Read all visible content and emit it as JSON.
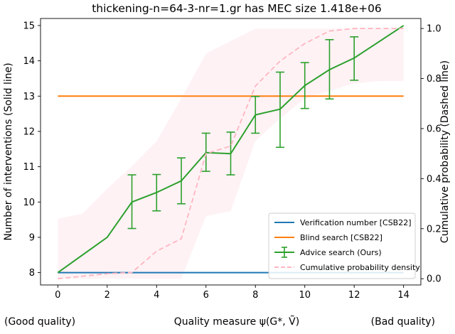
{
  "chart_data": {
    "type": "line",
    "title": "thickening-n=64-3-nr=1.gr has MEC size 1.418e+06",
    "xlabel": "Quality measure ψ(G*, Ṽ)",
    "ylabel": "Number of interventions (Solid line)",
    "y2label": "Cumulative probability (Dashed line)",
    "x_left_note": "(Good quality)",
    "x_right_note": "(Bad quality)",
    "xlim": [
      -0.7,
      14.7
    ],
    "ylim": [
      7.65,
      15.2
    ],
    "y2lim": [
      -0.025,
      1.04
    ],
    "x_ticks": [
      0,
      2,
      4,
      6,
      8,
      10,
      12,
      14
    ],
    "y_ticks": [
      8,
      9,
      10,
      11,
      12,
      13,
      14,
      15
    ],
    "y2_ticks": [
      0.0,
      0.2,
      0.4,
      0.6,
      0.8,
      1.0
    ],
    "y2_tick_labels": [
      "0.0",
      "0.2",
      "0.4",
      "0.6",
      "0.8",
      "1.0"
    ],
    "grid": false,
    "legend_placement": "bottom-right",
    "series": [
      {
        "name": "Verification number [CSB22]",
        "axis": "left",
        "style": "solid",
        "color": "#1f77b4",
        "x": [
          0,
          14
        ],
        "y": [
          8,
          8
        ]
      },
      {
        "name": "Blind search [CSB22]",
        "axis": "left",
        "style": "solid",
        "color": "#ff7f0e",
        "x": [
          0,
          14
        ],
        "y": [
          13,
          13
        ]
      },
      {
        "name": "Advice search (Ours)",
        "axis": "left",
        "style": "solid-errorbar",
        "color": "#2ca02c",
        "x": [
          0,
          2,
          3,
          4,
          5,
          6,
          7,
          8,
          9,
          10,
          11,
          12,
          14
        ],
        "y": [
          8.0,
          9.0,
          10.0,
          10.27,
          10.6,
          11.4,
          11.37,
          12.47,
          12.63,
          13.3,
          13.75,
          14.08,
          15.0
        ],
        "err_low": [
          8.0,
          9.0,
          9.25,
          9.75,
          9.95,
          10.87,
          10.77,
          11.95,
          11.55,
          12.65,
          12.92,
          13.45,
          15.0
        ],
        "err_high": [
          8.0,
          9.0,
          10.77,
          10.78,
          11.25,
          11.95,
          11.98,
          12.99,
          13.68,
          13.95,
          14.6,
          14.68,
          15.0
        ]
      },
      {
        "name": "Cumulative probability density",
        "axis": "right",
        "style": "dashed",
        "color": "#ffb6c1",
        "x": [
          0,
          1,
          2,
          3,
          4,
          5,
          6,
          7,
          8,
          9,
          10,
          11,
          12,
          13,
          14
        ],
        "y": [
          0.0,
          0.01,
          0.02,
          0.025,
          0.11,
          0.16,
          0.5,
          0.53,
          0.77,
          0.87,
          0.94,
          0.99,
          1.0,
          1.0,
          1.0
        ],
        "band_low": [
          0.0,
          0.0,
          0.0,
          0.0,
          0.0,
          0.0,
          0.25,
          0.27,
          0.55,
          0.64,
          0.72,
          0.75,
          0.78,
          0.79,
          0.79
        ],
        "band_high": [
          0.24,
          0.26,
          0.36,
          0.45,
          0.55,
          0.72,
          0.9,
          0.95,
          1.0,
          1.0,
          1.0,
          1.0,
          1.0,
          1.0,
          1.0
        ]
      }
    ]
  }
}
